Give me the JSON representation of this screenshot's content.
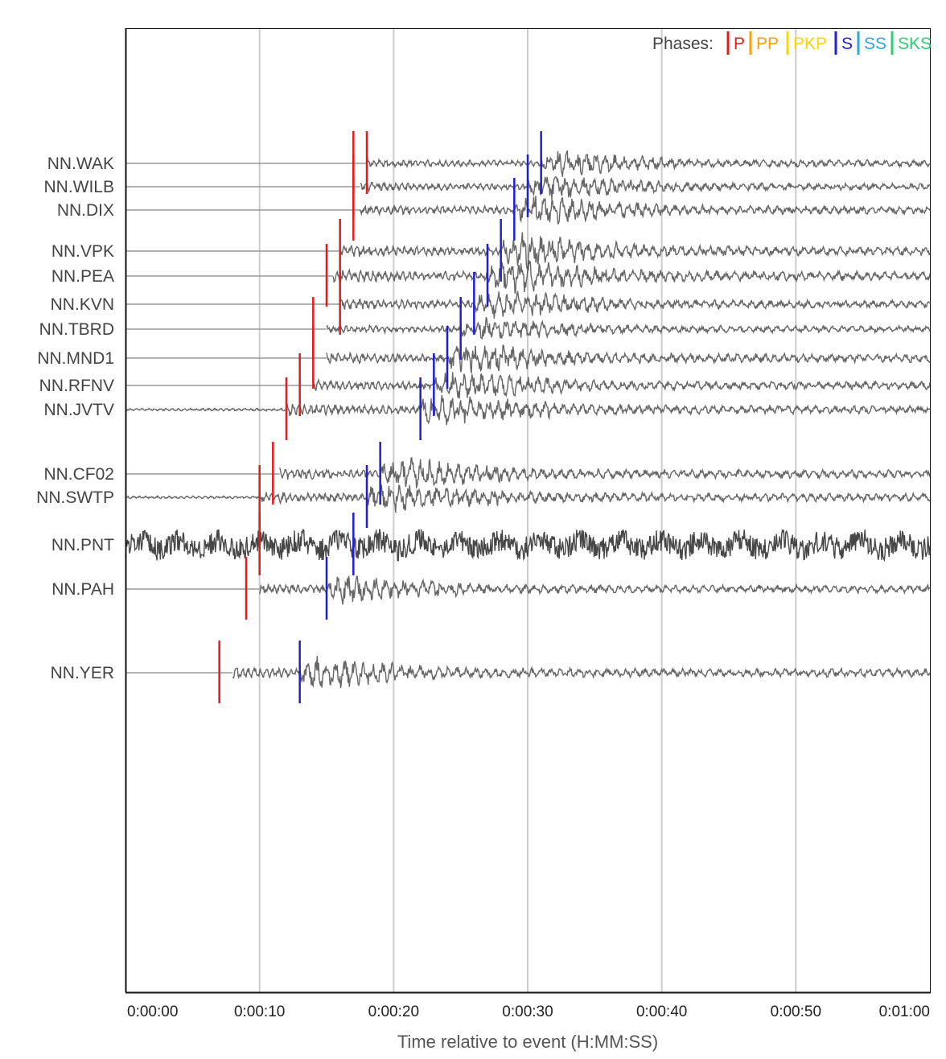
{
  "chart_data": {
    "type": "line",
    "title": "",
    "xlabel": "Time relative to event (H:MM:SS)",
    "xlim": [
      0,
      60
    ],
    "x_ticks": [
      {
        "value": 0,
        "label": "0:00:00"
      },
      {
        "value": 10,
        "label": "0:00:10"
      },
      {
        "value": 20,
        "label": "0:00:20"
      },
      {
        "value": 30,
        "label": "0:00:30"
      },
      {
        "value": 40,
        "label": "0:00:40"
      },
      {
        "value": 50,
        "label": "0:00:50"
      },
      {
        "value": 60,
        "label": "0:01:00"
      }
    ],
    "grid": "vertical",
    "legend": {
      "title": "Phases:",
      "placement": "top-right",
      "items": [
        {
          "name": "P",
          "color": "#e41a1c"
        },
        {
          "name": "PP",
          "color": "#ff9f00"
        },
        {
          "name": "PKP",
          "color": "#ffd400"
        },
        {
          "name": "S",
          "color": "#1f1fd6"
        },
        {
          "name": "SS",
          "color": "#29a8e0"
        },
        {
          "name": "SKS",
          "color": "#2ecc71"
        }
      ]
    },
    "stations": [
      {
        "name": "NN.WAK",
        "p": 17.0,
        "s": 31.0,
        "p2": 18.0,
        "s2": 31.0,
        "start": 18.0,
        "amp": 1.0,
        "style": "quake"
      },
      {
        "name": "NN.WILB",
        "p": 17.0,
        "s": 30.0,
        "start": 17.5,
        "amp": 1.0,
        "style": "quake"
      },
      {
        "name": "NN.DIX",
        "p": 17.0,
        "s": 29.0,
        "start": 17.5,
        "amp": 1.2,
        "style": "quake"
      },
      {
        "name": "NN.VPK",
        "p": 16.0,
        "s": 28.0,
        "start": 16.0,
        "amp": 1.4,
        "style": "quake"
      },
      {
        "name": "NN.PEA",
        "p": 15.0,
        "s": 27.0,
        "start": 15.5,
        "amp": 1.4,
        "style": "quake"
      },
      {
        "name": "NN.KVN",
        "p": 16.0,
        "s": 26.0,
        "start": 16.0,
        "amp": 1.2,
        "style": "quake"
      },
      {
        "name": "NN.TBRD",
        "p": 14.0,
        "s": 25.0,
        "start": 15.0,
        "amp": 1.0,
        "style": "quake"
      },
      {
        "name": "NN.MND1",
        "p": 14.0,
        "s": 24.0,
        "start": 15.0,
        "amp": 1.3,
        "style": "quake"
      },
      {
        "name": "NN.RFNV",
        "p": 13.0,
        "s": 23.0,
        "start": 14.0,
        "amp": 1.2,
        "style": "quake"
      },
      {
        "name": "NN.JVTV",
        "p": 12.0,
        "s": 22.0,
        "start": 0.0,
        "amp": 1.3,
        "style": "quake"
      },
      {
        "name": "NN.CF02",
        "p": 11.0,
        "s": 19.0,
        "start": 11.5,
        "amp": 1.3,
        "style": "quake"
      },
      {
        "name": "NN.SWTP",
        "p": 10.0,
        "s": 18.0,
        "start": 0.0,
        "amp": 1.3,
        "style": "quake"
      },
      {
        "name": "NN.PNT",
        "p": 10.0,
        "s": 17.0,
        "start": 0.0,
        "amp": 1.0,
        "style": "noisy"
      },
      {
        "name": "NN.PAH",
        "p": 9.0,
        "s": 15.0,
        "start": 10.0,
        "amp": 1.2,
        "style": "quake"
      },
      {
        "name": "NN.YER",
        "p": 7.0,
        "s": 13.0,
        "start": 8.0,
        "amp": 1.3,
        "style": "quake"
      }
    ]
  }
}
